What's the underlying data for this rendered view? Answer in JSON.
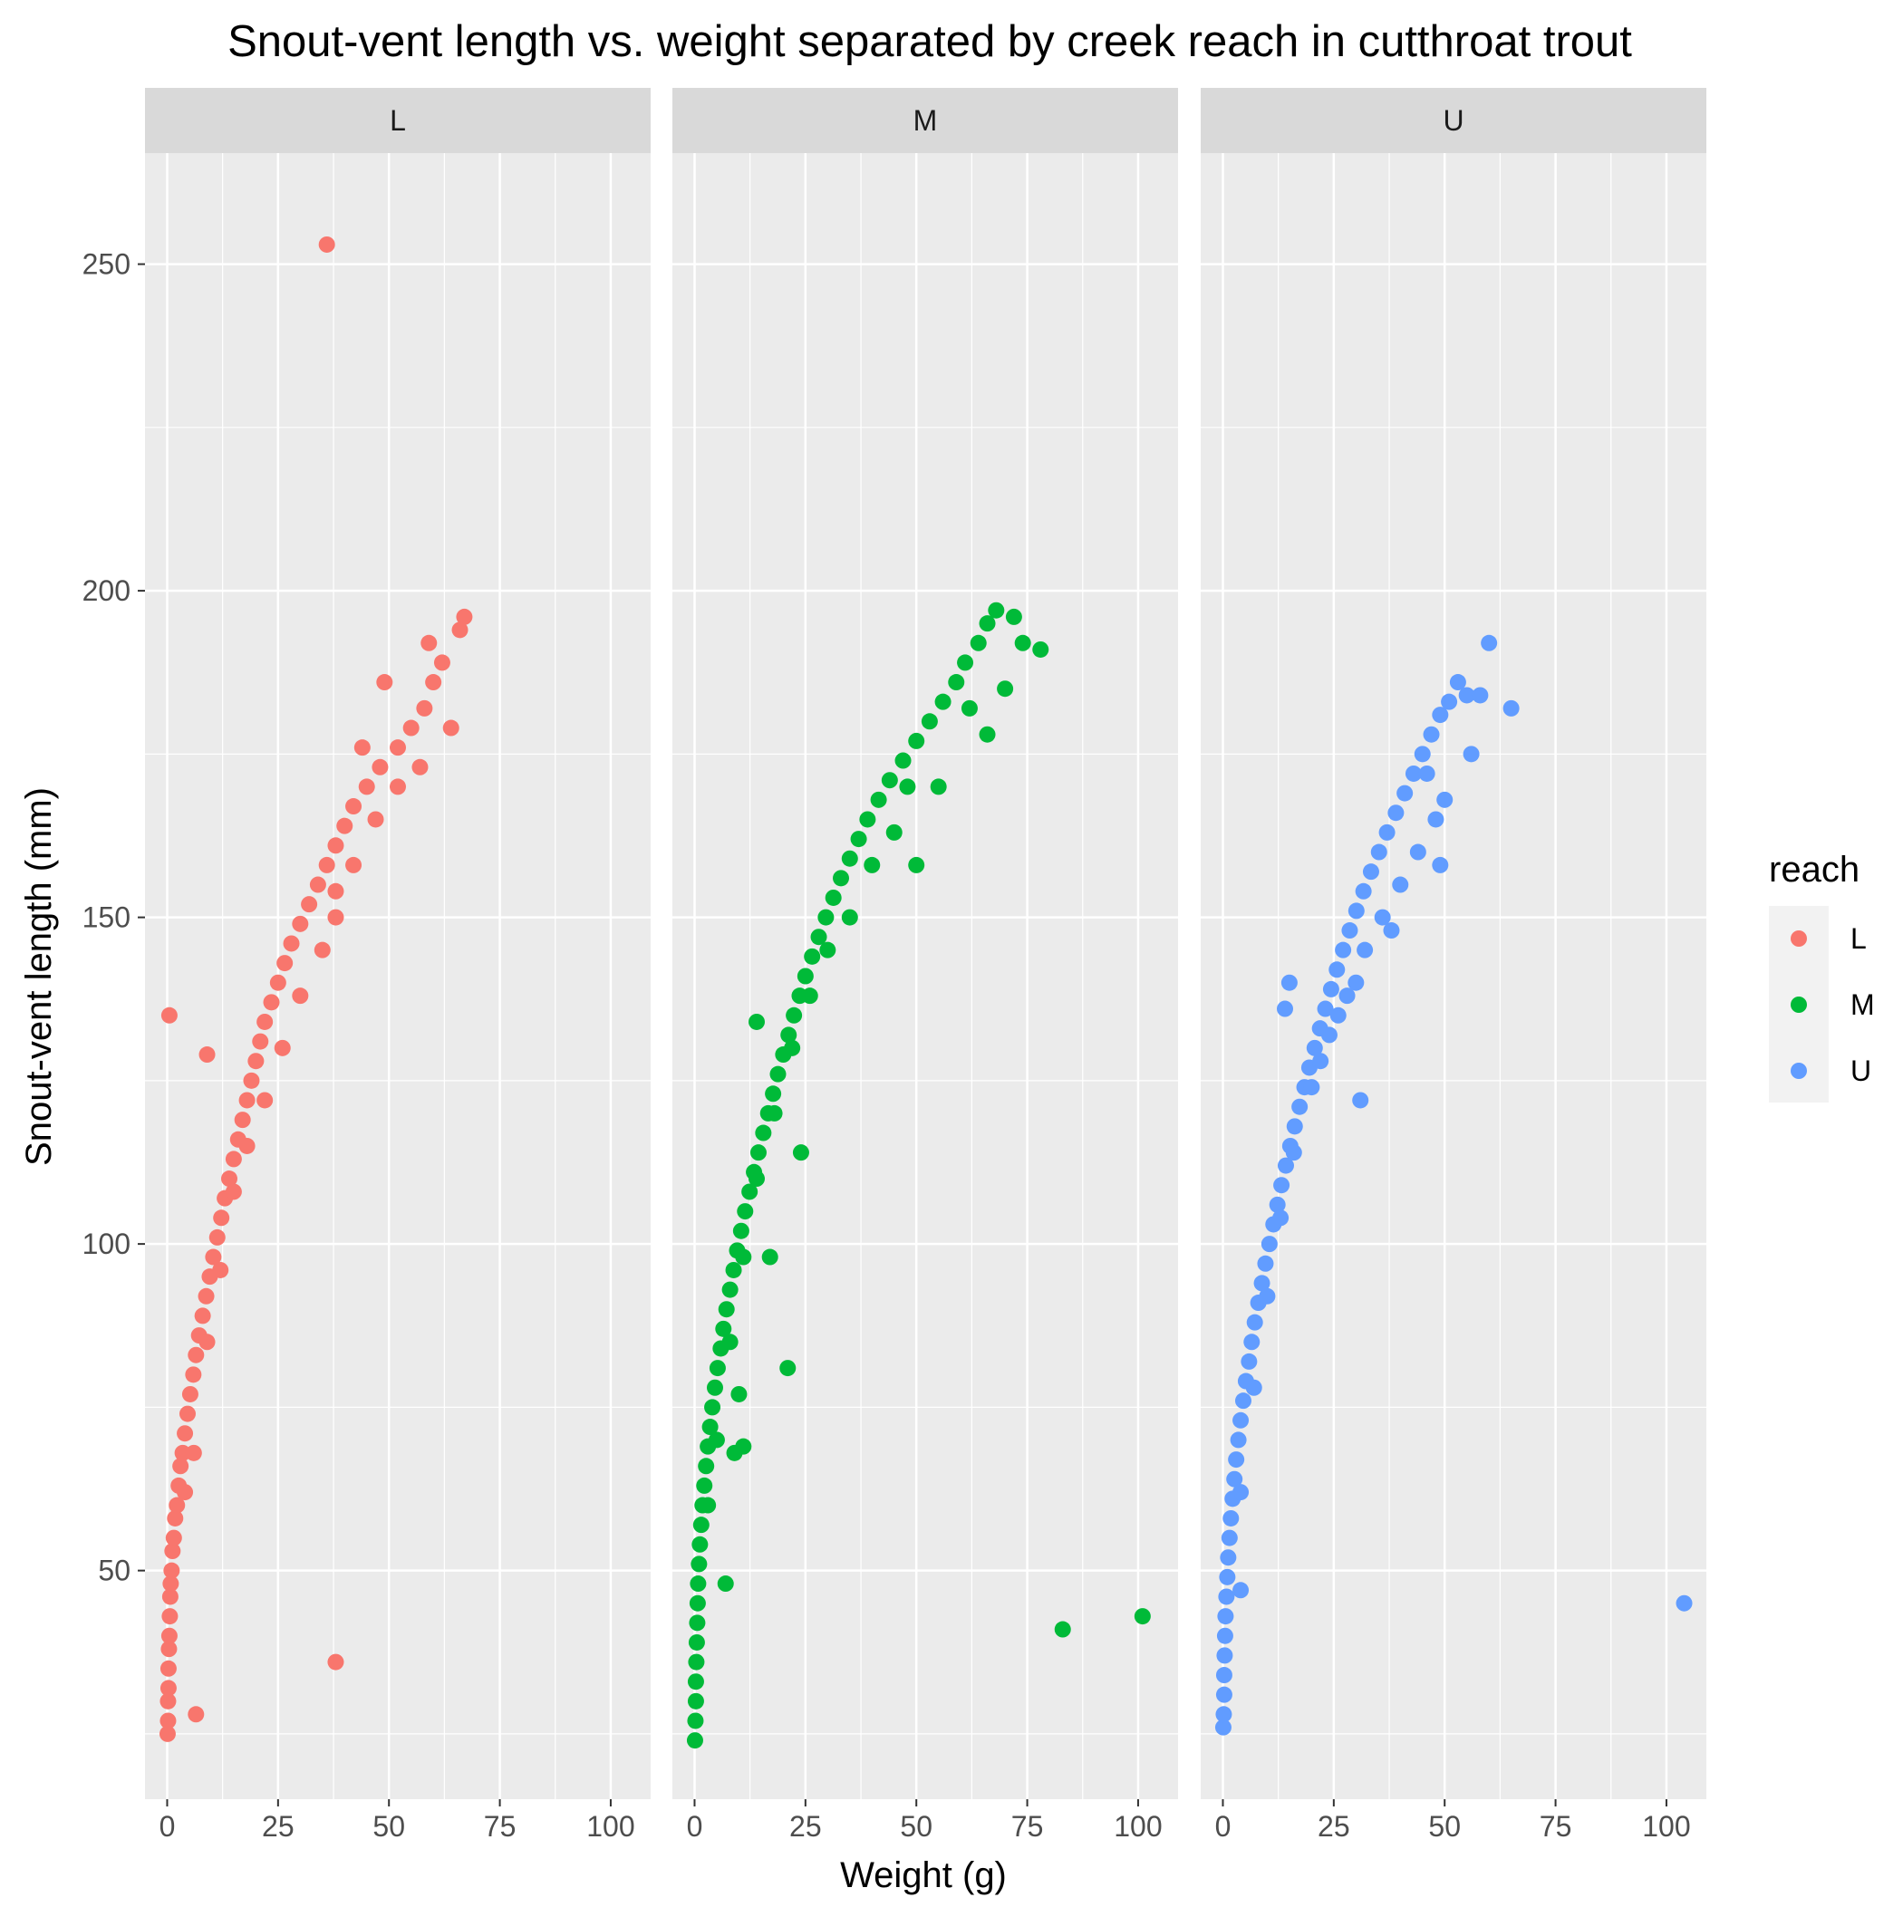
{
  "chart_data": {
    "type": "scatter",
    "title": "Snout-vent length vs. weight separated by creek reach in cutthroat trout",
    "xlabel": "Weight (g)",
    "ylabel": "Snout-vent length (mm)",
    "xlim": [
      -5,
      109
    ],
    "ylim": [
      15,
      267
    ],
    "x_ticks": [
      0,
      25,
      50,
      75,
      100
    ],
    "y_ticks": [
      50,
      100,
      150,
      200,
      250
    ],
    "grid": true,
    "legend": {
      "title": "reach",
      "position": "right"
    },
    "facet_labels": [
      "L",
      "M",
      "U"
    ],
    "series": [
      {
        "name": "L",
        "color": "#f8766d",
        "points": [
          [
            0.1,
            25
          ],
          [
            0.2,
            27
          ],
          [
            0.2,
            30
          ],
          [
            0.3,
            32
          ],
          [
            0.3,
            35
          ],
          [
            0.4,
            38
          ],
          [
            0.5,
            40
          ],
          [
            0.6,
            43
          ],
          [
            0.7,
            46
          ],
          [
            0.8,
            48
          ],
          [
            1,
            50
          ],
          [
            1.2,
            53
          ],
          [
            1.5,
            55
          ],
          [
            1.8,
            58
          ],
          [
            2.2,
            60
          ],
          [
            2.6,
            63
          ],
          [
            3,
            66
          ],
          [
            3.5,
            68
          ],
          [
            4,
            71
          ],
          [
            4.6,
            74
          ],
          [
            5.2,
            77
          ],
          [
            5.9,
            80
          ],
          [
            6.5,
            83
          ],
          [
            7.2,
            86
          ],
          [
            8,
            89
          ],
          [
            8.8,
            92
          ],
          [
            9.6,
            95
          ],
          [
            10.4,
            98
          ],
          [
            11.3,
            101
          ],
          [
            12.2,
            104
          ],
          [
            13,
            107
          ],
          [
            14,
            110
          ],
          [
            15,
            113
          ],
          [
            16,
            116
          ],
          [
            17,
            119
          ],
          [
            18,
            122
          ],
          [
            19,
            125
          ],
          [
            20,
            128
          ],
          [
            21,
            131
          ],
          [
            22,
            134
          ],
          [
            23.5,
            137
          ],
          [
            25,
            140
          ],
          [
            26.5,
            143
          ],
          [
            28,
            146
          ],
          [
            30,
            149
          ],
          [
            32,
            152
          ],
          [
            34,
            155
          ],
          [
            36,
            158
          ],
          [
            38,
            161
          ],
          [
            40,
            164
          ],
          [
            42,
            167
          ],
          [
            45,
            170
          ],
          [
            48,
            173
          ],
          [
            52,
            176
          ],
          [
            55,
            179
          ],
          [
            58,
            182
          ],
          [
            60,
            186
          ],
          [
            62,
            189
          ],
          [
            66,
            194
          ],
          [
            67,
            196
          ],
          [
            4,
            62
          ],
          [
            6,
            68
          ],
          [
            9,
            85
          ],
          [
            12,
            96
          ],
          [
            15,
            108
          ],
          [
            18,
            115
          ],
          [
            22,
            122
          ],
          [
            26,
            130
          ],
          [
            30,
            138
          ],
          [
            35,
            145
          ],
          [
            38,
            150
          ],
          [
            42,
            158
          ],
          [
            47,
            165
          ],
          [
            52,
            170
          ],
          [
            57,
            173
          ],
          [
            64,
            179
          ],
          [
            44,
            176
          ],
          [
            49,
            186
          ],
          [
            59,
            192
          ],
          [
            38,
            154
          ],
          [
            0.5,
            135
          ],
          [
            9,
            129
          ],
          [
            6.5,
            28
          ],
          [
            38,
            36
          ],
          [
            36,
            253
          ]
        ]
      },
      {
        "name": "M",
        "color": "#00ba38",
        "points": [
          [
            0.1,
            24
          ],
          [
            0.2,
            27
          ],
          [
            0.3,
            30
          ],
          [
            0.3,
            33
          ],
          [
            0.4,
            36
          ],
          [
            0.5,
            39
          ],
          [
            0.6,
            42
          ],
          [
            0.7,
            45
          ],
          [
            0.8,
            48
          ],
          [
            1,
            51
          ],
          [
            1.2,
            54
          ],
          [
            1.5,
            57
          ],
          [
            1.8,
            60
          ],
          [
            2.2,
            63
          ],
          [
            2.6,
            66
          ],
          [
            3,
            69
          ],
          [
            3.5,
            72
          ],
          [
            4,
            75
          ],
          [
            4.6,
            78
          ],
          [
            5.2,
            81
          ],
          [
            5.9,
            84
          ],
          [
            6.5,
            87
          ],
          [
            7.2,
            90
          ],
          [
            8,
            93
          ],
          [
            8.8,
            96
          ],
          [
            9.6,
            99
          ],
          [
            10.5,
            102
          ],
          [
            11.4,
            105
          ],
          [
            12.4,
            108
          ],
          [
            13.4,
            111
          ],
          [
            14.4,
            114
          ],
          [
            15.5,
            117
          ],
          [
            16.6,
            120
          ],
          [
            17.7,
            123
          ],
          [
            18.8,
            126
          ],
          [
            20,
            129
          ],
          [
            21.2,
            132
          ],
          [
            22.4,
            135
          ],
          [
            23.7,
            138
          ],
          [
            25,
            141
          ],
          [
            26.5,
            144
          ],
          [
            28,
            147
          ],
          [
            29.6,
            150
          ],
          [
            31.3,
            153
          ],
          [
            33,
            156
          ],
          [
            35,
            159
          ],
          [
            37,
            162
          ],
          [
            39,
            165
          ],
          [
            41.5,
            168
          ],
          [
            44,
            171
          ],
          [
            47,
            174
          ],
          [
            50,
            177
          ],
          [
            53,
            180
          ],
          [
            56,
            183
          ],
          [
            59,
            186
          ],
          [
            61,
            189
          ],
          [
            64,
            192
          ],
          [
            66,
            195
          ],
          [
            68,
            197
          ],
          [
            72,
            196
          ],
          [
            74,
            192
          ],
          [
            78,
            191
          ],
          [
            3,
            60
          ],
          [
            5,
            70
          ],
          [
            8,
            85
          ],
          [
            11,
            98
          ],
          [
            14,
            110
          ],
          [
            18,
            120
          ],
          [
            22,
            130
          ],
          [
            26,
            138
          ],
          [
            30,
            145
          ],
          [
            35,
            150
          ],
          [
            40,
            158
          ],
          [
            45,
            163
          ],
          [
            50,
            158
          ],
          [
            55,
            170
          ],
          [
            62,
            182
          ],
          [
            66,
            178
          ],
          [
            70,
            185
          ],
          [
            48,
            170
          ],
          [
            7,
            48
          ],
          [
            9,
            68
          ],
          [
            11,
            69
          ],
          [
            10,
            77
          ],
          [
            17,
            98
          ],
          [
            21,
            81
          ],
          [
            24,
            114
          ],
          [
            14,
            134
          ],
          [
            83,
            41
          ],
          [
            101,
            43
          ]
        ]
      },
      {
        "name": "U",
        "color": "#619cff",
        "points": [
          [
            0.1,
            26
          ],
          [
            0.2,
            28
          ],
          [
            0.3,
            31
          ],
          [
            0.3,
            34
          ],
          [
            0.4,
            37
          ],
          [
            0.5,
            40
          ],
          [
            0.6,
            43
          ],
          [
            0.8,
            46
          ],
          [
            1,
            49
          ],
          [
            1.2,
            52
          ],
          [
            1.5,
            55
          ],
          [
            1.8,
            58
          ],
          [
            2.2,
            61
          ],
          [
            2.6,
            64
          ],
          [
            3,
            67
          ],
          [
            3.5,
            70
          ],
          [
            4,
            73
          ],
          [
            4.6,
            76
          ],
          [
            5.2,
            79
          ],
          [
            5.9,
            82
          ],
          [
            6.5,
            85
          ],
          [
            7.2,
            88
          ],
          [
            8,
            91
          ],
          [
            8.8,
            94
          ],
          [
            9.6,
            97
          ],
          [
            10.5,
            100
          ],
          [
            11.4,
            103
          ],
          [
            12.3,
            106
          ],
          [
            13.2,
            109
          ],
          [
            14.2,
            112
          ],
          [
            15.2,
            115
          ],
          [
            16.2,
            118
          ],
          [
            17.3,
            121
          ],
          [
            18.4,
            124
          ],
          [
            19.5,
            127
          ],
          [
            20.7,
            130
          ],
          [
            21.9,
            133
          ],
          [
            23.1,
            136
          ],
          [
            24.4,
            139
          ],
          [
            25.7,
            142
          ],
          [
            27.1,
            145
          ],
          [
            28.6,
            148
          ],
          [
            30.1,
            151
          ],
          [
            31.7,
            154
          ],
          [
            33.4,
            157
          ],
          [
            35.2,
            160
          ],
          [
            37,
            163
          ],
          [
            39,
            166
          ],
          [
            41,
            169
          ],
          [
            43,
            172
          ],
          [
            45,
            175
          ],
          [
            47,
            178
          ],
          [
            49,
            181
          ],
          [
            51,
            183
          ],
          [
            53,
            186
          ],
          [
            55,
            184
          ],
          [
            58,
            184
          ],
          [
            60,
            192
          ],
          [
            65,
            182
          ],
          [
            56,
            175
          ],
          [
            4,
            62
          ],
          [
            7,
            78
          ],
          [
            10,
            92
          ],
          [
            13,
            104
          ],
          [
            16,
            114
          ],
          [
            20,
            124
          ],
          [
            24,
            132
          ],
          [
            28,
            138
          ],
          [
            32,
            145
          ],
          [
            36,
            150
          ],
          [
            40,
            155
          ],
          [
            44,
            160
          ],
          [
            48,
            165
          ],
          [
            50,
            168
          ],
          [
            46,
            172
          ],
          [
            49,
            158
          ],
          [
            38,
            148
          ],
          [
            30,
            140
          ],
          [
            26,
            135
          ],
          [
            22,
            128
          ],
          [
            4,
            47
          ],
          [
            14,
            136
          ],
          [
            15,
            140
          ],
          [
            31,
            122
          ],
          [
            104,
            45
          ]
        ]
      }
    ]
  }
}
